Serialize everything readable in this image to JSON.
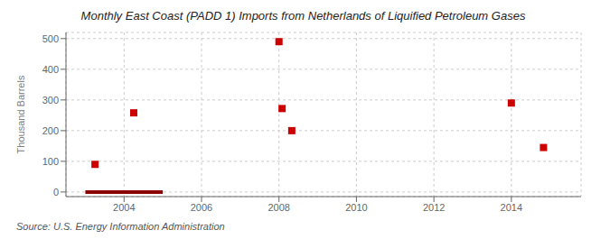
{
  "chart_data": {
    "type": "scatter",
    "title": "Monthly East Coast (PADD 1) Imports from Netherlands of Liquified Petroleum Gases",
    "ylabel": "Thousand Barrels",
    "annotation": "Source: U.S. Energy Information Administration",
    "xlim": [
      2002.5,
      2015.8
    ],
    "ylim": [
      -15,
      520
    ],
    "xticks": [
      2004,
      2006,
      2008,
      2010,
      2012,
      2014
    ],
    "yticks": [
      0,
      100,
      200,
      300,
      400,
      500
    ],
    "grid": true,
    "series": [
      {
        "type": "line",
        "color": "#8b0000",
        "x": [
          2003.0,
          2005.0
        ],
        "values": [
          0,
          0
        ]
      },
      {
        "type": "scatter",
        "color": "#cc0000",
        "marker": "square",
        "x": [
          2003.25,
          2004.25,
          2008.0,
          2008.08,
          2008.33,
          2014.0,
          2014.83
        ],
        "values": [
          90,
          258,
          490,
          272,
          200,
          290,
          145
        ]
      }
    ]
  }
}
